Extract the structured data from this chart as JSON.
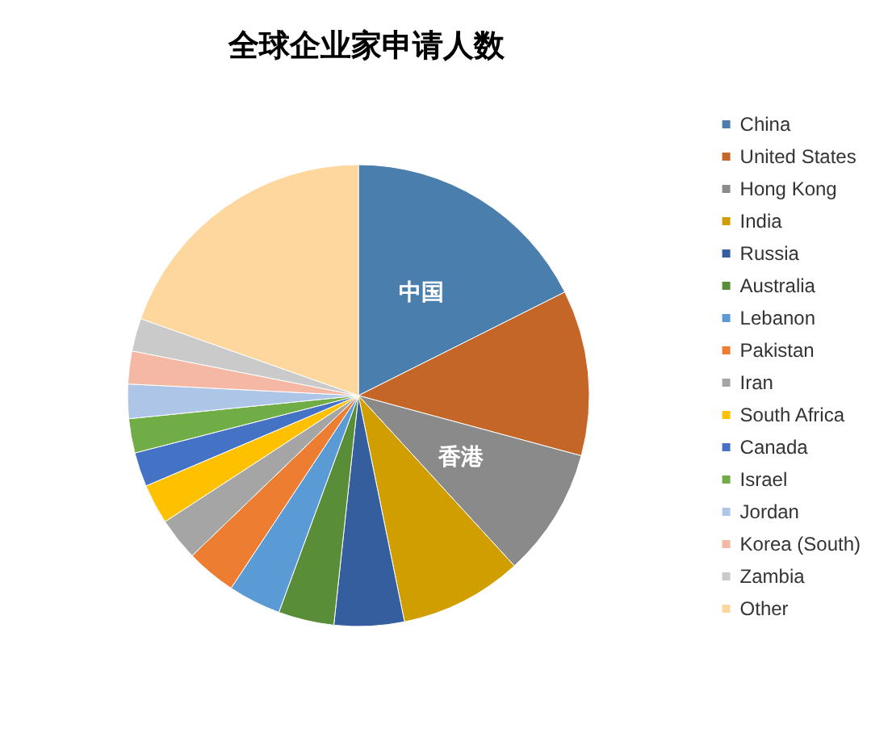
{
  "chart_data": {
    "type": "pie",
    "title": "全球企业家申请人数",
    "categories": [
      "China",
      "United States",
      "Hong Kong",
      "India",
      "Russia",
      "Australia",
      "Lebanon",
      "Pakistan",
      "Iran",
      "South Africa",
      "Canada",
      "Israel",
      "Jordan",
      "Korea (South)",
      "Zambia",
      "Other"
    ],
    "values": [
      17.6,
      11.6,
      9.0,
      8.6,
      4.9,
      3.9,
      3.7,
      3.5,
      3.0,
      2.8,
      2.4,
      2.4,
      2.4,
      2.3,
      2.3,
      19.6
    ],
    "colors": [
      "#4a7ead",
      "#c46628",
      "#8a8a8a",
      "#d19e00",
      "#355e9f",
      "#5a8d38",
      "#5b9bd5",
      "#ed7d31",
      "#a5a5a5",
      "#ffc000",
      "#4472c4",
      "#70ad47",
      "#adc5e6",
      "#f4b8a4",
      "#cacaca",
      "#fdd79e"
    ],
    "value_labels": [
      "中国",
      null,
      "香港",
      null,
      null,
      null,
      null,
      null,
      null,
      null,
      null,
      null,
      null,
      null,
      null,
      null
    ],
    "legend": "right"
  }
}
